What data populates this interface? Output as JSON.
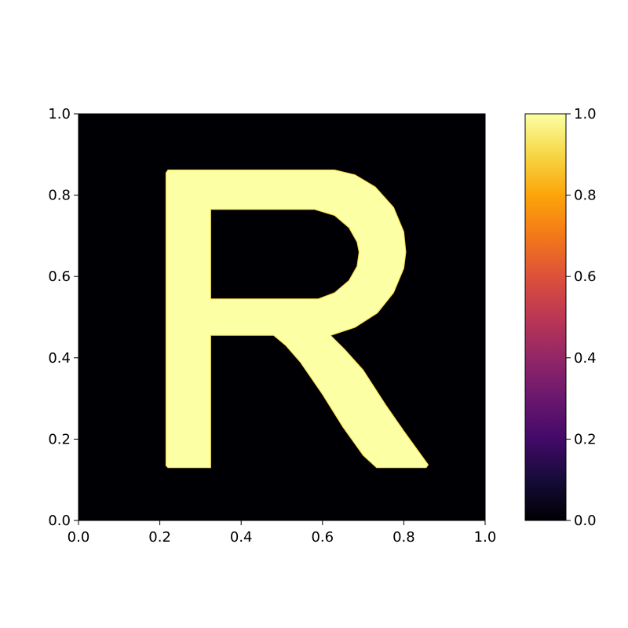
{
  "chart_data": {
    "type": "heatmap",
    "title": "",
    "xlabel": "",
    "ylabel": "",
    "xlim": [
      0.0,
      1.0
    ],
    "ylim": [
      0.0,
      1.0
    ],
    "grid": false,
    "colormap": "inferno",
    "background_value": 0.0,
    "foreground_value": 1.0,
    "depicted_shape": "R",
    "x_ticks": [
      {
        "value": 0.0,
        "label": "0.0"
      },
      {
        "value": 0.2,
        "label": "0.2"
      },
      {
        "value": 0.4,
        "label": "0.4"
      },
      {
        "value": 0.6,
        "label": "0.6"
      },
      {
        "value": 0.8,
        "label": "0.8"
      },
      {
        "value": 1.0,
        "label": "1.0"
      }
    ],
    "y_ticks": [
      {
        "value": 0.0,
        "label": "0.0"
      },
      {
        "value": 0.2,
        "label": "0.2"
      },
      {
        "value": 0.4,
        "label": "0.4"
      },
      {
        "value": 0.6,
        "label": "0.6"
      },
      {
        "value": 0.8,
        "label": "0.8"
      },
      {
        "value": 1.0,
        "label": "1.0"
      }
    ],
    "letter_regions": {
      "stem": {
        "x": [
          0.215,
          0.325
        ],
        "y": [
          0.13,
          0.86
        ]
      },
      "bowl_outer": {
        "x": [
          0.215,
          0.805
        ],
        "y": [
          0.455,
          0.86
        ]
      },
      "bowl_inner": {
        "x": [
          0.325,
          0.69
        ],
        "y": [
          0.545,
          0.765
        ]
      },
      "leg": {
        "x": [
          0.48,
          0.86
        ],
        "y": [
          0.13,
          0.455
        ]
      }
    },
    "colorbar": {
      "range": [
        0.0,
        1.0
      ],
      "ticks": [
        {
          "value": 0.0,
          "label": "0.0"
        },
        {
          "value": 0.2,
          "label": "0.2"
        },
        {
          "value": 0.4,
          "label": "0.4"
        },
        {
          "value": 0.6,
          "label": "0.6"
        },
        {
          "value": 0.8,
          "label": "0.8"
        },
        {
          "value": 1.0,
          "label": "1.0"
        }
      ],
      "stops": [
        {
          "offset": 0.0,
          "color": "#000004"
        },
        {
          "offset": 0.1,
          "color": "#160b39"
        },
        {
          "offset": 0.2,
          "color": "#420a68"
        },
        {
          "offset": 0.3,
          "color": "#6a176e"
        },
        {
          "offset": 0.4,
          "color": "#932667"
        },
        {
          "offset": 0.5,
          "color": "#bc3754"
        },
        {
          "offset": 0.6,
          "color": "#dd513a"
        },
        {
          "offset": 0.7,
          "color": "#f37819"
        },
        {
          "offset": 0.8,
          "color": "#fca50a"
        },
        {
          "offset": 0.9,
          "color": "#f6d746"
        },
        {
          "offset": 1.0,
          "color": "#fcffa4"
        }
      ]
    }
  }
}
